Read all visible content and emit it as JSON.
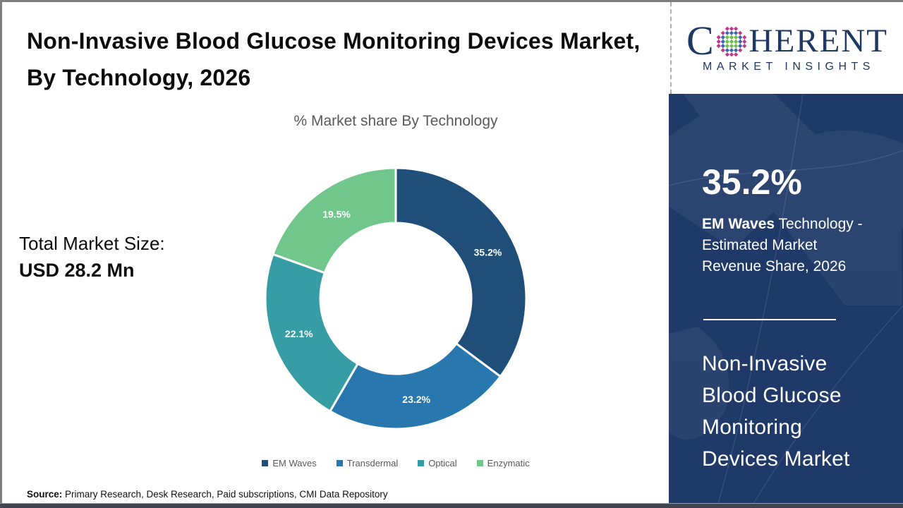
{
  "header": {
    "title": "Non-Invasive Blood Glucose Monitoring Devices Market, By Technology, 2026"
  },
  "logo": {
    "first_letter": "C",
    "rest": "HERENT",
    "subtitle": "MARKET INSIGHTS",
    "text_color": "#1f3864",
    "globe_colors": {
      "inner": "#6fbe4a",
      "mid": "#3a67ae",
      "outer": "#c0378c"
    }
  },
  "main": {
    "subtitle": "% Market share By Technology",
    "total_label": "Total Market Size:",
    "total_value": "USD 28.2 Mn",
    "source_label": "Source:",
    "source_text": " Primary Research, Desk Research, Paid subscriptions, CMI Data Repository"
  },
  "chart_data": {
    "type": "pie",
    "subtype": "donut",
    "title": "% Market share By Technology",
    "categories": [
      "EM Waves",
      "Transdermal",
      "Optical",
      "Enzymatic"
    ],
    "values": [
      35.2,
      23.2,
      22.1,
      19.5
    ],
    "unit": "%",
    "colors": [
      "#1f4e79",
      "#2878af",
      "#359da3",
      "#71c68c"
    ],
    "start_angle_deg": 0,
    "direction": "clockwise",
    "inner_radius_ratio": 0.58,
    "legend_position": "bottom",
    "data_labels": [
      "35.2%",
      "23.2%",
      "22.1%",
      "19.5%"
    ]
  },
  "sidebar": {
    "stat_value": "35.2%",
    "stat_bold": "EM Waves",
    "stat_rest": " Technology - Estimated Market Revenue Share, 2026",
    "market_title": "Non-Invasive Blood Glucose Monitoring Devices Market",
    "background_color": "#1f3a68"
  }
}
